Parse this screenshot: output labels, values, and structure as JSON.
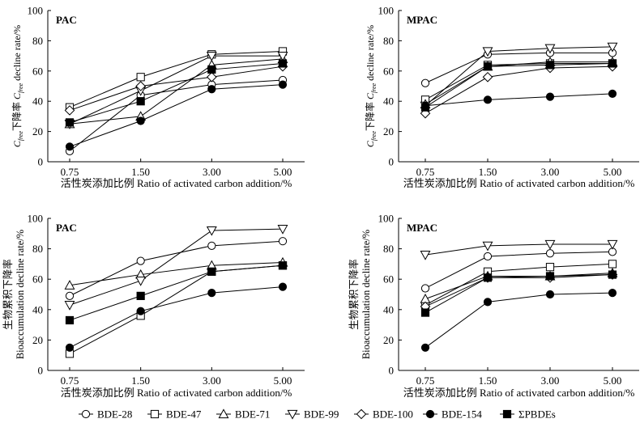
{
  "legend": [
    {
      "name": "BDE-28",
      "marker": "circle-open"
    },
    {
      "name": "BDE-47",
      "marker": "square-open"
    },
    {
      "name": "BDE-71",
      "marker": "triangle-up-open"
    },
    {
      "name": "BDE-99",
      "marker": "triangle-down-open"
    },
    {
      "name": "BDE-100",
      "marker": "diamond-open"
    },
    {
      "name": "BDE-154",
      "marker": "circle-filled"
    },
    {
      "name": "ΣPBDEs",
      "marker": "square-filled"
    }
  ],
  "chart_data": [
    {
      "type": "line",
      "title": "PAC",
      "xlabel": "活性炭添加比例 Ratio of activated carbon addition/%",
      "ylabel": [
        "Cfree下降率 Cfree decline rate/%"
      ],
      "ylabel_parts": {
        "main": "C",
        "sub": "free",
        "mid": "下降率 ",
        "main2": "C",
        "sub2": "free",
        "tail": " decline rate/%"
      },
      "categories": [
        "0.75",
        "1.50",
        "3.00",
        "5.00"
      ],
      "ylim": [
        0,
        100
      ],
      "yticks": [
        "0",
        "20",
        "40",
        "60",
        "80",
        "100"
      ],
      "series": [
        {
          "name": "BDE-28",
          "marker": "circle-open",
          "values": [
            7,
            44,
            51,
            54
          ]
        },
        {
          "name": "BDE-47",
          "marker": "square-open",
          "values": [
            36,
            56,
            71,
            73
          ]
        },
        {
          "name": "BDE-71",
          "marker": "triangle-up-open",
          "values": [
            25,
            30,
            64,
            68
          ]
        },
        {
          "name": "BDE-99",
          "marker": "triangle-down-open",
          "values": [
            25,
            47,
            70,
            70
          ]
        },
        {
          "name": "BDE-100",
          "marker": "diamond-open",
          "values": [
            34,
            50,
            56,
            63
          ]
        },
        {
          "name": "BDE-154",
          "marker": "circle-filled",
          "values": [
            10,
            27,
            48,
            51
          ]
        },
        {
          "name": "ΣPBDEs",
          "marker": "square-filled",
          "values": [
            26,
            40,
            61,
            65
          ]
        }
      ]
    },
    {
      "type": "line",
      "title": "MPAC",
      "xlabel": "活性炭添加比例 Ratio of activated carbon addition/%",
      "ylabel": [
        "Cfree下降率 Cfree decline rate/%"
      ],
      "ylabel_parts": {
        "main": "C",
        "sub": "free",
        "mid": "下降率 ",
        "main2": "C",
        "sub2": "free",
        "tail": " decline rate/%"
      },
      "categories": [
        "0.75",
        "1.50",
        "3.00",
        "5.00"
      ],
      "ylim": [
        0,
        100
      ],
      "yticks": [
        "0",
        "20",
        "40",
        "60",
        "80",
        "100"
      ],
      "series": [
        {
          "name": "BDE-28",
          "marker": "circle-open",
          "values": [
            52,
            71,
            72,
            72
          ]
        },
        {
          "name": "BDE-47",
          "marker": "square-open",
          "values": [
            41,
            64,
            65,
            65
          ]
        },
        {
          "name": "BDE-71",
          "marker": "triangle-up-open",
          "values": [
            38,
            63,
            66,
            66
          ]
        },
        {
          "name": "BDE-99",
          "marker": "triangle-down-open",
          "values": [
            37,
            73,
            75,
            76
          ]
        },
        {
          "name": "BDE-100",
          "marker": "diamond-open",
          "values": [
            32,
            56,
            62,
            63
          ]
        },
        {
          "name": "BDE-154",
          "marker": "circle-filled",
          "values": [
            37,
            41,
            43,
            45
          ]
        },
        {
          "name": "ΣPBDEs",
          "marker": "square-filled",
          "values": [
            36,
            63,
            64,
            65
          ]
        }
      ]
    },
    {
      "type": "line",
      "title": "PAC",
      "xlabel": "活性炭添加比例 Ratio of activated carbon addition/%",
      "ylabel": [
        "生物累积下降率",
        "Bioaccumulation decline rate/%"
      ],
      "categories": [
        "0.75",
        "1.50",
        "3.00",
        "5.00"
      ],
      "ylim": [
        0,
        100
      ],
      "yticks": [
        "0",
        "20",
        "40",
        "60",
        "80",
        "100"
      ],
      "series": [
        {
          "name": "BDE-28",
          "marker": "circle-open",
          "values": [
            49,
            72,
            82,
            85
          ]
        },
        {
          "name": "BDE-47",
          "marker": "square-open",
          "values": [
            11,
            36,
            65,
            69
          ]
        },
        {
          "name": "BDE-71",
          "marker": "triangle-up-open",
          "values": [
            56,
            63,
            69,
            71
          ]
        },
        {
          "name": "BDE-99",
          "marker": "triangle-down-open",
          "values": [
            43,
            59,
            92,
            93
          ]
        },
        {
          "name": "BDE-154",
          "marker": "circle-filled",
          "values": [
            15,
            39,
            51,
            55
          ]
        },
        {
          "name": "ΣPBDEs",
          "marker": "square-filled",
          "values": [
            33,
            49,
            65,
            69
          ]
        }
      ]
    },
    {
      "type": "line",
      "title": "MPAC",
      "xlabel": "活性炭添加比例 Ratio of activated carbon addition/%",
      "ylabel": [
        "生物累积下降率",
        "Bioaccumulation decline rate/%"
      ],
      "categories": [
        "0.75",
        "1.50",
        "3.00",
        "5.00"
      ],
      "ylim": [
        0,
        100
      ],
      "yticks": [
        "0",
        "20",
        "40",
        "60",
        "80",
        "100"
      ],
      "series": [
        {
          "name": "BDE-28",
          "marker": "circle-open",
          "values": [
            54,
            75,
            77,
            78
          ]
        },
        {
          "name": "BDE-47",
          "marker": "square-open",
          "values": [
            43,
            65,
            68,
            70
          ]
        },
        {
          "name": "BDE-71",
          "marker": "triangle-up-open",
          "values": [
            47,
            62,
            62,
            64
          ]
        },
        {
          "name": "BDE-99",
          "marker": "triangle-down-open",
          "values": [
            76,
            82,
            83,
            83
          ]
        },
        {
          "name": "BDE-100",
          "marker": "diamond-open",
          "values": [
            42,
            61,
            61,
            63
          ]
        },
        {
          "name": "BDE-154",
          "marker": "circle-filled",
          "values": [
            15,
            45,
            50,
            51
          ]
        },
        {
          "name": "ΣPBDEs",
          "marker": "square-filled",
          "values": [
            38,
            61,
            62,
            63
          ]
        }
      ]
    }
  ]
}
